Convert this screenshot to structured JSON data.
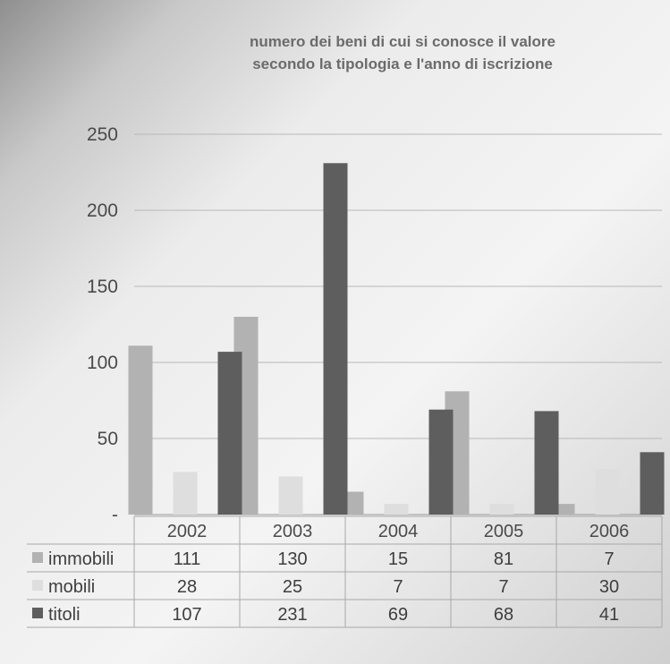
{
  "chart_data": {
    "type": "bar",
    "title_lines": [
      "numero dei beni di cui si conosce il valore",
      "secondo la tipologia e l'anno di iscrizione"
    ],
    "categories": [
      "2002",
      "2003",
      "2004",
      "2005",
      "2006"
    ],
    "series": [
      {
        "name": "immobili",
        "values": [
          111,
          130,
          15,
          81,
          7
        ],
        "color": "#b2b2b2"
      },
      {
        "name": "mobili",
        "values": [
          28,
          25,
          7,
          7,
          30
        ],
        "color": "#dedede"
      },
      {
        "name": "titoli",
        "values": [
          107,
          231,
          69,
          68,
          41
        ],
        "color": "#5e5e5e"
      }
    ],
    "y_ticks": [
      {
        "value": 0,
        "label": "-"
      },
      {
        "value": 50,
        "label": "50"
      },
      {
        "value": 100,
        "label": "100"
      },
      {
        "value": 150,
        "label": "150"
      },
      {
        "value": 200,
        "label": "200"
      },
      {
        "value": 250,
        "label": "250"
      }
    ],
    "ylim": [
      0,
      250
    ],
    "grid": true,
    "legend": "data table below chart"
  }
}
